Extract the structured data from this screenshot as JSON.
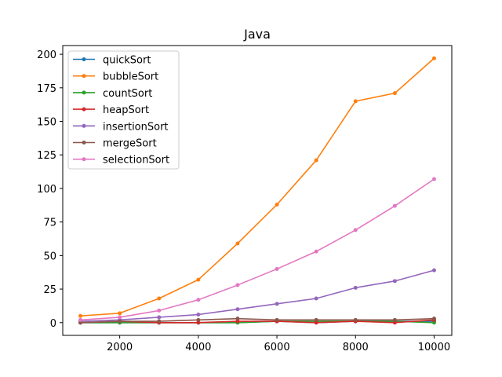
{
  "chart_data": {
    "type": "line",
    "title": "Java",
    "xlabel": "",
    "ylabel": "",
    "xlim": [
      550,
      10450
    ],
    "ylim": [
      -9.5,
      206.5
    ],
    "xticks": [
      2000,
      4000,
      6000,
      8000,
      10000
    ],
    "yticks": [
      0,
      25,
      50,
      75,
      100,
      125,
      150,
      175,
      200
    ],
    "grid": false,
    "legend_position": "upper-left",
    "x": [
      1000,
      2000,
      3000,
      4000,
      5000,
      6000,
      7000,
      8000,
      9000,
      10000
    ],
    "series": [
      {
        "name": "quickSort",
        "color": "#1f77b4",
        "values": [
          0,
          0,
          0,
          0,
          0,
          1,
          0,
          1,
          1,
          1
        ]
      },
      {
        "name": "bubbleSort",
        "color": "#ff7f0e",
        "values": [
          5,
          7,
          18,
          32,
          59,
          88,
          121,
          165,
          171,
          197
        ]
      },
      {
        "name": "countSort",
        "color": "#2ca02c",
        "values": [
          0,
          0,
          0,
          0,
          0,
          1,
          1,
          1,
          1,
          0
        ]
      },
      {
        "name": "heapSort",
        "color": "#d62728",
        "values": [
          0,
          1,
          0,
          0,
          1,
          1,
          0,
          1,
          0,
          2
        ]
      },
      {
        "name": "insertionSort",
        "color": "#9467bd",
        "values": [
          1,
          2,
          4,
          6,
          10,
          14,
          18,
          26,
          31,
          39
        ]
      },
      {
        "name": "mergeSort",
        "color": "#8c564b",
        "values": [
          0,
          1,
          1,
          2,
          3,
          2,
          2,
          2,
          2,
          3
        ]
      },
      {
        "name": "selectionSort",
        "color": "#e377c2",
        "values": [
          2,
          4,
          9,
          17,
          28,
          40,
          53,
          69,
          87,
          107
        ]
      }
    ]
  }
}
